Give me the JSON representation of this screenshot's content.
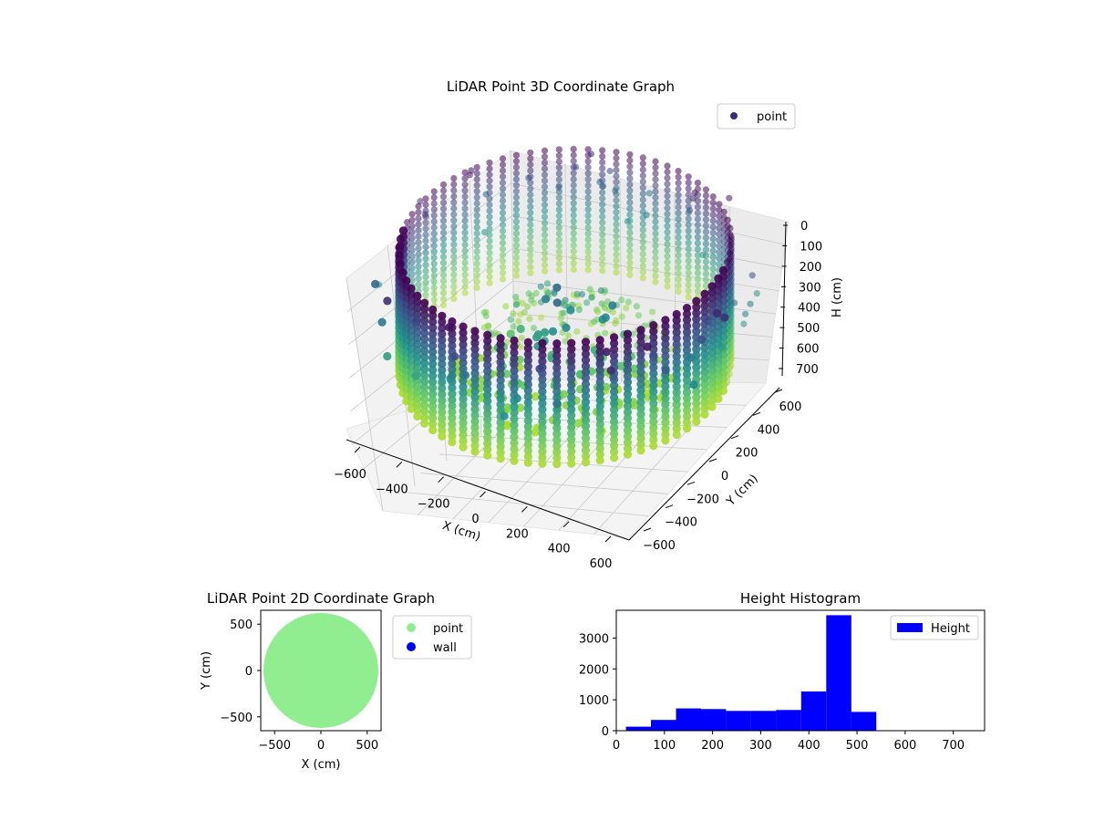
{
  "chart_data": [
    {
      "type": "scatter",
      "projection": "3d",
      "title": "LiDAR Point 3D Coordinate Graph",
      "xlabel": "X (cm)",
      "ylabel": "Y (cm)",
      "zlabel": "H (cm)",
      "xlim": [
        -650,
        650
      ],
      "ylim": [
        -650,
        650
      ],
      "zlim": [
        0,
        760
      ],
      "zaxis_inverted": true,
      "x_ticks": [
        "−600",
        "−400",
        "−200",
        "0",
        "200",
        "400",
        "600"
      ],
      "y_ticks": [
        "−600",
        "−400",
        "−200",
        "0",
        "200",
        "400",
        "600"
      ],
      "z_ticks": [
        "0",
        "100",
        "200",
        "300",
        "400",
        "500",
        "600",
        "700"
      ],
      "legend": {
        "entries": [
          "point"
        ],
        "placement": "top-right"
      },
      "colormap": "viridis",
      "color_by": "height",
      "grid": true,
      "structure": {
        "description_note": "",
        "ring_radius": 600,
        "height_range": [
          100,
          560
        ],
        "columns": 72
      },
      "colors": {
        "low": "#440154",
        "mid": "#21918c",
        "high": "#bddf26",
        "legend_marker": "#3b2a7c"
      }
    },
    {
      "type": "scatter",
      "title": "LiDAR Point 2D Coordinate Graph",
      "xlabel": "X (cm)",
      "ylabel": "Y (cm)",
      "xlim": [
        -650,
        650
      ],
      "ylim": [
        -650,
        650
      ],
      "x_ticks": [
        "−500",
        "0",
        "500"
      ],
      "y_ticks": [
        "500",
        "0",
        "−500"
      ],
      "series": [
        {
          "name": "point",
          "color": "#90ee90",
          "shape": "disk",
          "radius": 620
        },
        {
          "name": "wall",
          "color": "#0000ff",
          "points": []
        }
      ],
      "legend": {
        "placement": "outside-right"
      }
    },
    {
      "type": "bar",
      "subtype": "histogram",
      "title": "Height Histogram",
      "xlim": [
        0,
        765
      ],
      "ylim": [
        0,
        3900
      ],
      "x_ticks": [
        "0",
        "100",
        "200",
        "300",
        "400",
        "500",
        "600",
        "700"
      ],
      "y_ticks": [
        "0",
        "1000",
        "2000",
        "3000"
      ],
      "bin_edges": [
        20,
        72,
        124,
        176,
        228,
        280,
        332,
        384,
        436,
        488,
        540
      ],
      "series": [
        {
          "name": "Height",
          "color": "#0000ff",
          "values": [
            130,
            350,
            720,
            700,
            640,
            640,
            670,
            1270,
            3740,
            610
          ]
        }
      ],
      "legend": {
        "placement": "top-right"
      }
    }
  ]
}
